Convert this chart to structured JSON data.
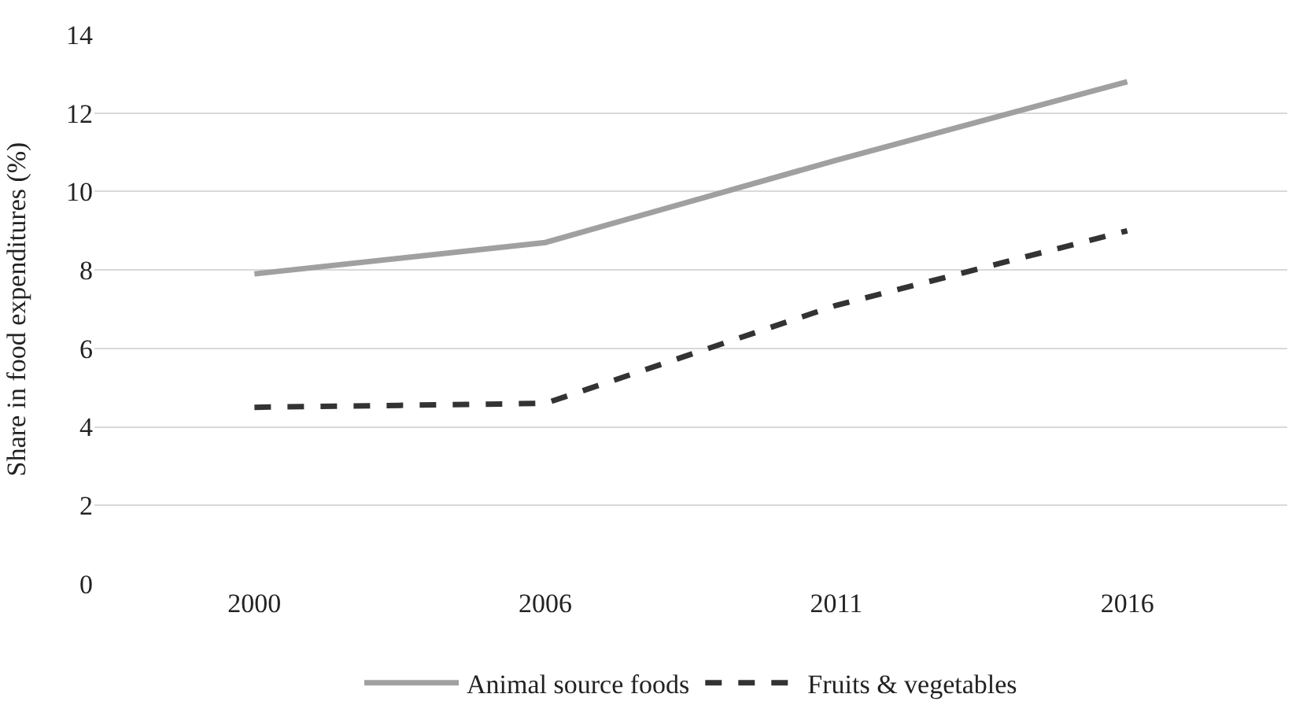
{
  "chart_data": {
    "type": "line",
    "ylabel": "Share in food expenditures (%)",
    "categories": [
      "2000",
      "2006",
      "2011",
      "2016"
    ],
    "series": [
      {
        "name": "Animal source foods",
        "color": "#a0a0a0",
        "line_style": "solid",
        "values": [
          7.9,
          8.7,
          10.8,
          12.8
        ]
      },
      {
        "name": "Fruits & vegetables",
        "color": "#333333",
        "line_style": "dashed",
        "values": [
          4.5,
          4.6,
          7.1,
          9.0
        ]
      }
    ],
    "ylim": [
      0,
      14
    ],
    "yticks": [
      0,
      2,
      4,
      6,
      8,
      10,
      12,
      14
    ],
    "grid": "y",
    "legend": "bottom",
    "marker": "none"
  }
}
